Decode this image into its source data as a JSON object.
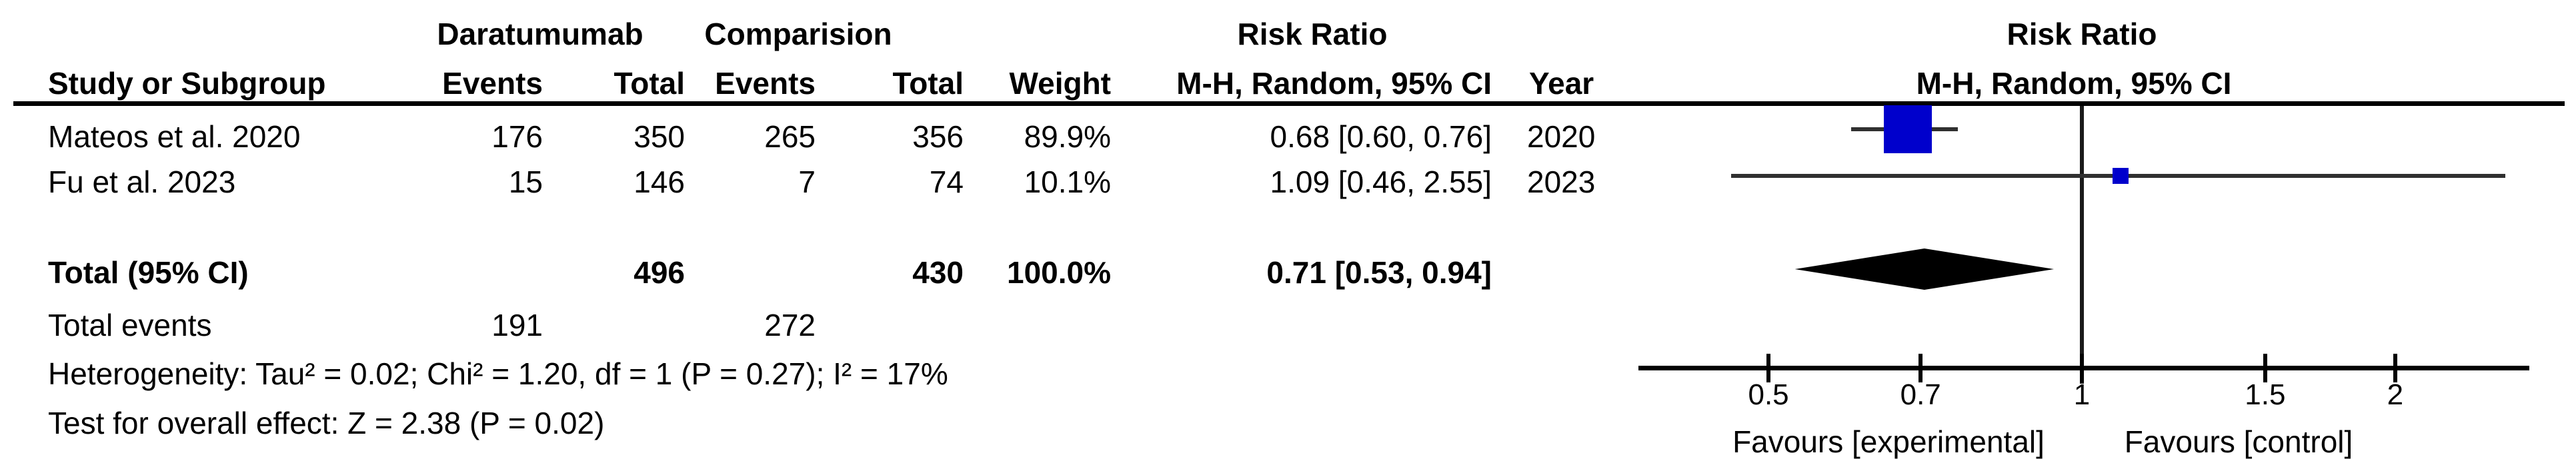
{
  "table": {
    "group1_label": "Daratumumab",
    "group2_label": "Comparision",
    "risk_ratio_label": "Risk Ratio",
    "col_headers": {
      "study": "Study or Subgroup",
      "events1": "Events",
      "total1": "Total",
      "events2": "Events",
      "total2": "Total",
      "weight": "Weight",
      "mh": "M-H, Random, 95% CI",
      "year": "Year"
    },
    "rows": [
      {
        "study": "Mateos et al. 2020",
        "events1": "176",
        "total1": "350",
        "events2": "265",
        "total2": "356",
        "weight": "89.9%",
        "rr": "0.68 [0.60, 0.76]",
        "year": "2020"
      },
      {
        "study": "Fu et al. 2023",
        "events1": "15",
        "total1": "146",
        "events2": "7",
        "total2": "74",
        "weight": "10.1%",
        "rr": "1.09 [0.46, 2.55]",
        "year": "2023"
      }
    ],
    "total_row": {
      "label": "Total (95% CI)",
      "total1": "496",
      "total2": "430",
      "weight": "100.0%",
      "rr": "0.71 [0.53, 0.94]"
    },
    "total_events": {
      "label": "Total events",
      "events1": "191",
      "events2": "272"
    },
    "heterogeneity": "Heterogeneity: Tau² = 0.02; Chi² = 1.20, df = 1 (P = 0.27); I² = 17%",
    "overall_effect": "Test for overall effect: Z = 2.38 (P = 0.02)"
  },
  "plot": {
    "title": "Risk Ratio",
    "subtitle": "M-H, Random, 95% CI",
    "favours_left": "Favours [experimental]",
    "favours_right": "Favours [control]",
    "marker_color": "#0000CC",
    "ci_line_color": "#303030",
    "axis_color": "#000000"
  },
  "chart_data": {
    "type": "scatter",
    "plot_style": "forest",
    "effect_measure": "Risk Ratio (M-H, Random, 95% CI)",
    "xscale": "log",
    "xticks": [
      0.5,
      0.7,
      1,
      1.5,
      2
    ],
    "xtick_labels": [
      "0.5",
      "0.7",
      "1",
      "1.5",
      "2"
    ],
    "xlim": [
      0.375,
      2.69
    ],
    "null_line": 1,
    "studies": [
      {
        "name": "Mateos et al. 2020",
        "rr": 0.68,
        "ci_low": 0.6,
        "ci_high": 0.76,
        "weight_pct": 89.9,
        "year": 2020
      },
      {
        "name": "Fu et al. 2023",
        "rr": 1.09,
        "ci_low": 0.46,
        "ci_high": 2.55,
        "weight_pct": 10.1,
        "year": 2023
      }
    ],
    "overall": {
      "label": "Total (95% CI)",
      "rr": 0.71,
      "ci_low": 0.53,
      "ci_high": 0.94,
      "weight_pct": 100.0
    }
  }
}
